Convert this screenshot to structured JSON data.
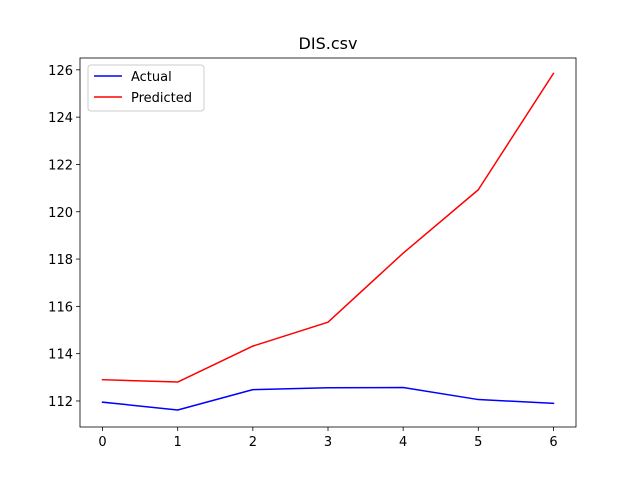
{
  "chart_data": {
    "type": "line",
    "title": "DIS.csv",
    "xlabel": "",
    "ylabel": "",
    "x": [
      0,
      1,
      2,
      3,
      4,
      5,
      6
    ],
    "xlim": [
      -0.3,
      6.3
    ],
    "ylim": [
      110.9,
      126.5
    ],
    "xticks": [
      0,
      1,
      2,
      3,
      4,
      5,
      6
    ],
    "yticks": [
      112,
      114,
      116,
      118,
      120,
      122,
      124,
      126
    ],
    "grid": false,
    "legend_position": "top-left",
    "series": [
      {
        "name": "Actual",
        "color": "#0000ff",
        "values": [
          111.95,
          111.62,
          112.48,
          112.56,
          112.57,
          112.06,
          111.9
        ]
      },
      {
        "name": "Predicted",
        "color": "#ff0000",
        "values": [
          112.9,
          112.8,
          114.32,
          115.33,
          118.25,
          120.93,
          125.85
        ]
      }
    ]
  }
}
